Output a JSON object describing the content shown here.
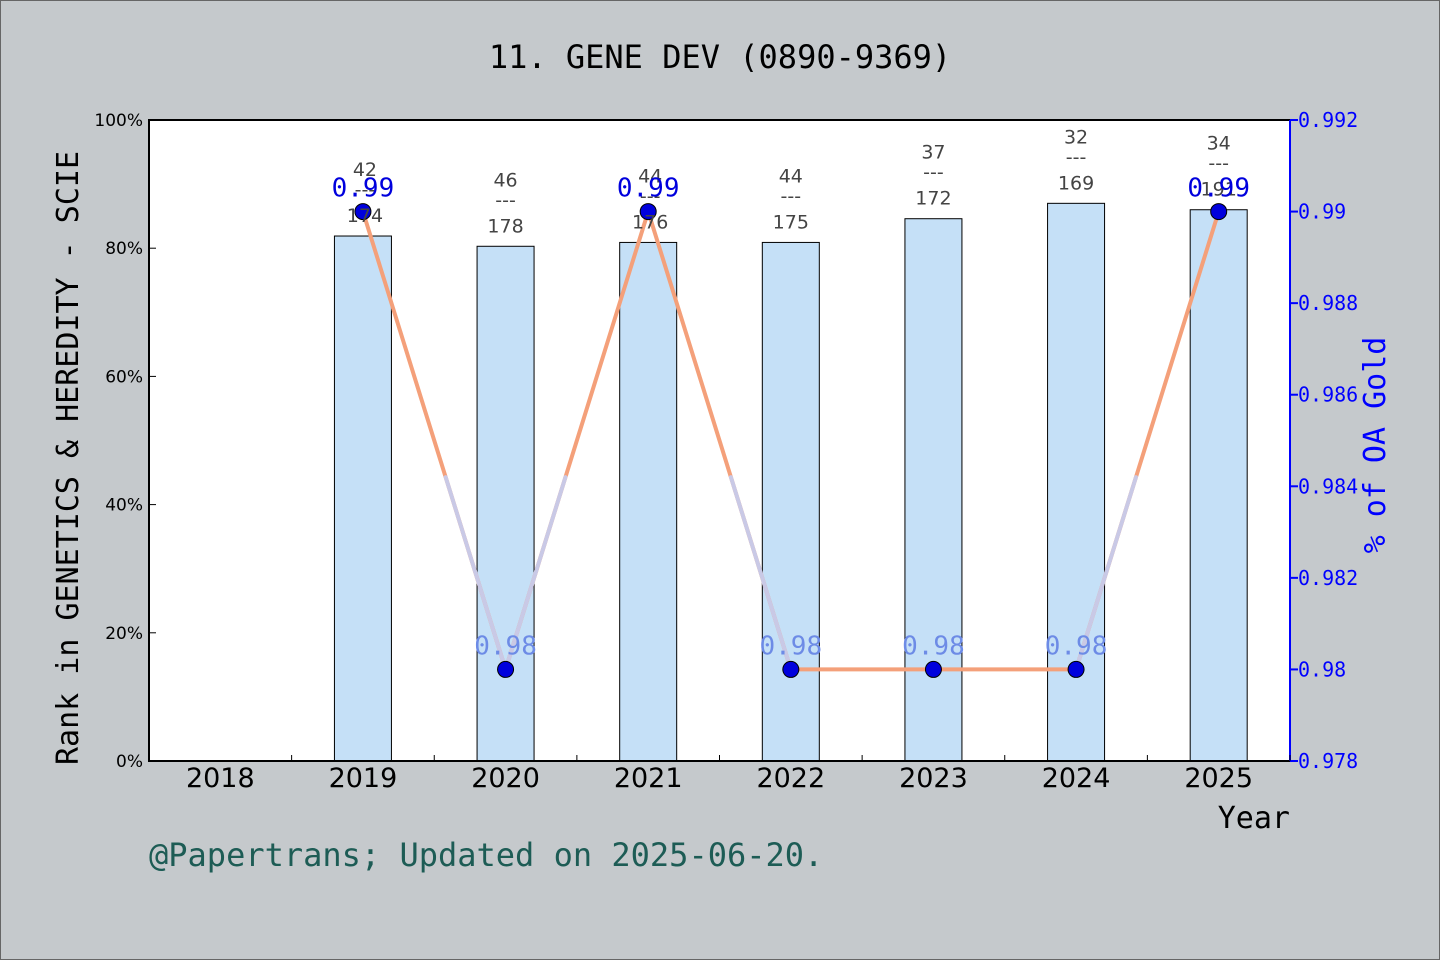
{
  "chart_data": {
    "type": "bar",
    "title": "11. GENE DEV (0890-9369)",
    "xlabel": "Year",
    "ylabel_left": "Rank in GENETICS & HEREDITY - SCIE",
    "ylabel_right": "% of OA Gold",
    "footer": "@Papertrans; Updated on 2025-06-20.",
    "categories": [
      "2018",
      "2019",
      "2020",
      "2021",
      "2022",
      "2023",
      "2024",
      "2025"
    ],
    "left_axis": {
      "ylim": [
        0,
        100
      ],
      "ticks": [
        "0%",
        "20%",
        "40%",
        "60%",
        "80%",
        "100%"
      ]
    },
    "right_axis": {
      "ylim": [
        0.978,
        0.992
      ],
      "ticks": [
        "0.978",
        "0.98",
        "0.982",
        "0.984",
        "0.986",
        "0.988",
        "0.99",
        "0.992"
      ]
    },
    "series": [
      {
        "kind": "bar",
        "axis": "left",
        "values": [
          null,
          81.9,
          80.3,
          80.9,
          80.9,
          84.6,
          87.0,
          86.0
        ],
        "labels": [
          null,
          {
            "rank": "42",
            "sep": "---",
            "total": "174"
          },
          {
            "rank": "46",
            "sep": "---",
            "total": "178"
          },
          {
            "rank": "44",
            "sep": "---",
            "total": "176"
          },
          {
            "rank": "44",
            "sep": "---",
            "total": "175"
          },
          {
            "rank": "37",
            "sep": "---",
            "total": "172"
          },
          {
            "rank": "32",
            "sep": "---",
            "total": "169"
          },
          {
            "rank": "34",
            "sep": "---",
            "total": "191"
          }
        ]
      },
      {
        "kind": "line",
        "axis": "right",
        "values": [
          null,
          0.99,
          0.98,
          0.99,
          0.98,
          0.98,
          0.98,
          0.99
        ],
        "labels": [
          null,
          "0.99",
          "0.98",
          "0.99",
          "0.98",
          "0.98",
          "0.98",
          "0.99"
        ]
      }
    ],
    "colors": {
      "background": "#c5c9cc",
      "plot_bg": "#ffffff",
      "bar_fill": "#c5e0f7",
      "line": "#f4a07a",
      "line_faded": "#c9c9e6",
      "marker": "#0000dd",
      "right_axis": "#0000ff",
      "footer": "#1d5c55",
      "data_label": "#444444"
    }
  }
}
